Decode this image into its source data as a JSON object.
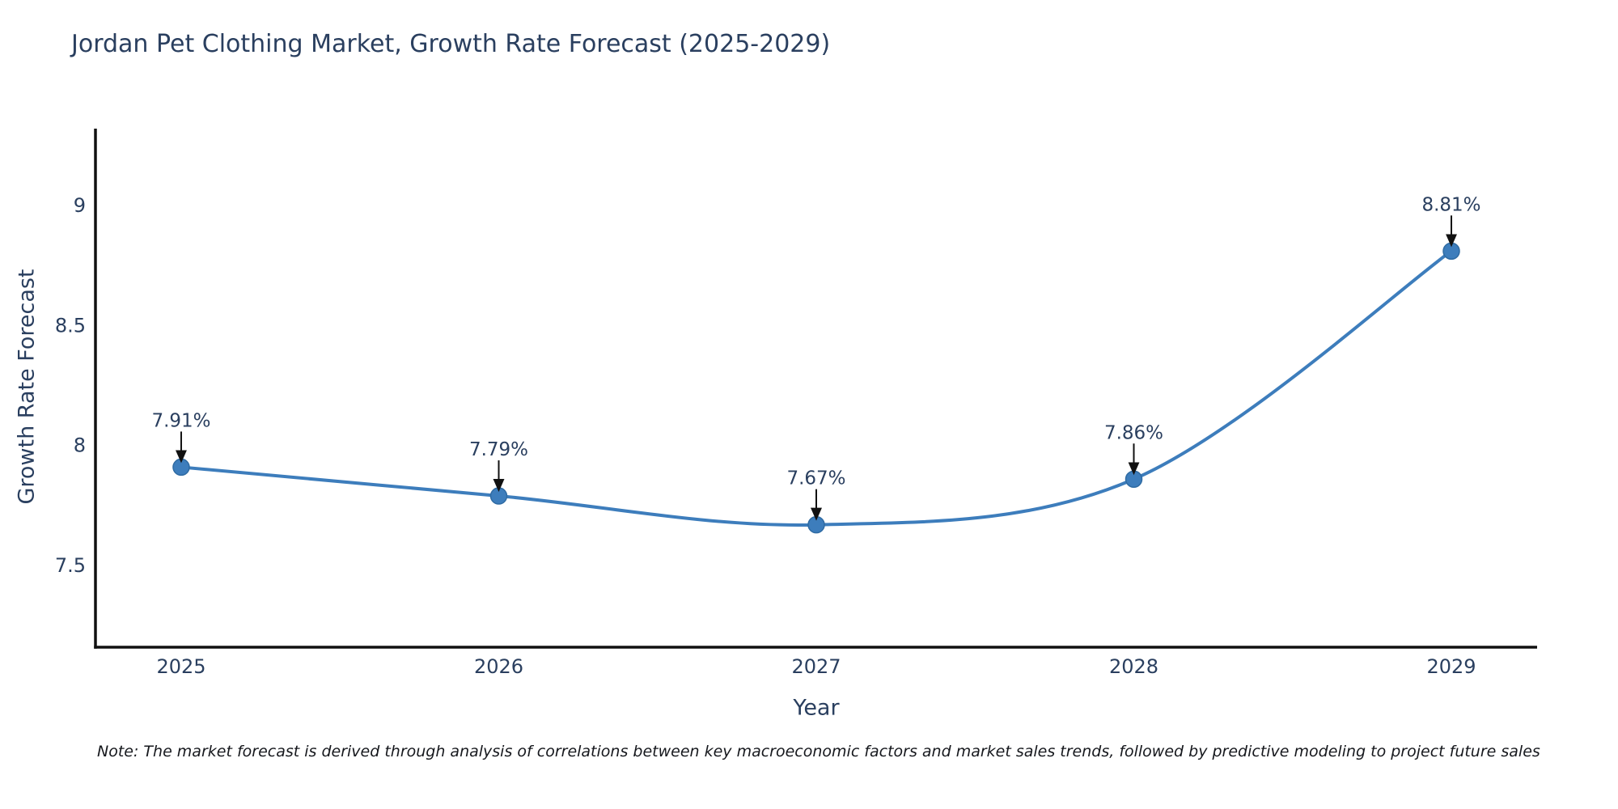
{
  "chart": {
    "title": "Jordan Pet Clothing Market, Growth Rate Forecast (2025-2029)",
    "note": "Note: The market forecast is derived through analysis of correlations between key macroeconomic factors and market sales trends, followed by predictive modeling to project future sales",
    "colors": {
      "line": "#3d7dbc",
      "marker": "#3d7dbc",
      "marker_edge": "#2f6ba3",
      "axis": "#111111",
      "tick_text": "#2a3f5f",
      "annotation_text": "#2a3f5f",
      "arrow": "#111111",
      "title_text": "#2a3f5f",
      "note_text": "#16181d"
    }
  },
  "chart_data": {
    "type": "line",
    "title": "Jordan Pet Clothing Market, Growth Rate Forecast (2025-2029)",
    "xlabel": "Year",
    "ylabel": "Growth Rate Forecast",
    "x": [
      2025,
      2026,
      2027,
      2028,
      2029
    ],
    "values": [
      7.91,
      7.79,
      7.67,
      7.86,
      8.81
    ],
    "point_labels": [
      "7.91%",
      "7.79%",
      "7.67%",
      "7.86%",
      "8.81%"
    ],
    "xtick_labels": [
      "2025",
      "2026",
      "2027",
      "2028",
      "2029"
    ],
    "yticks": [
      7.5,
      8,
      8.5,
      9
    ],
    "ytick_labels": [
      "7.5",
      "8",
      "8.5",
      "9"
    ],
    "xlim": [
      2024.73,
      2029.27
    ],
    "ylim": [
      7.16,
      9.32
    ],
    "grid": false,
    "legend": false,
    "line_shape": "spline",
    "markers": true,
    "annotations": "percent value label with downward arrow above each data point"
  }
}
